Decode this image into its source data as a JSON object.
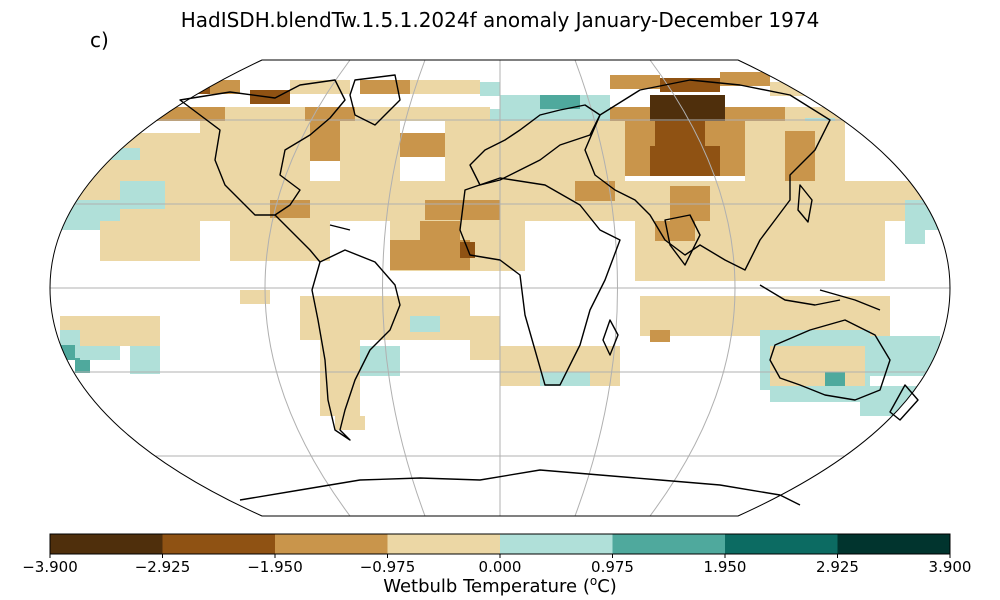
{
  "title": "HadISDH.blendTw.1.5.1.2024f anomaly January-December 1974",
  "panel_label": "c)",
  "colorbar": {
    "label_main": "Wetbulb Temperature (",
    "label_sup": "o",
    "label_unit": "C)",
    "ticks": [
      "−3.900",
      "−2.925",
      "−1.950",
      "−0.975",
      "0.000",
      "0.975",
      "1.950",
      "2.925",
      "3.900"
    ],
    "colors": [
      "#4f2f0c",
      "#8f5213",
      "#c9954b",
      "#ecd7a5",
      "#b0e0d9",
      "#4fa99d",
      "#0c6b62",
      "#01342e"
    ]
  },
  "map": {
    "projection": "robinson",
    "gridlines": true,
    "palette": {
      "-3": "#4f2f0c",
      "-2": "#8f5213",
      "-1": "#c9954b",
      "0n": "#ecd7a5",
      "0p": "#b0e0d9",
      "1": "#4fa99d"
    }
  }
}
